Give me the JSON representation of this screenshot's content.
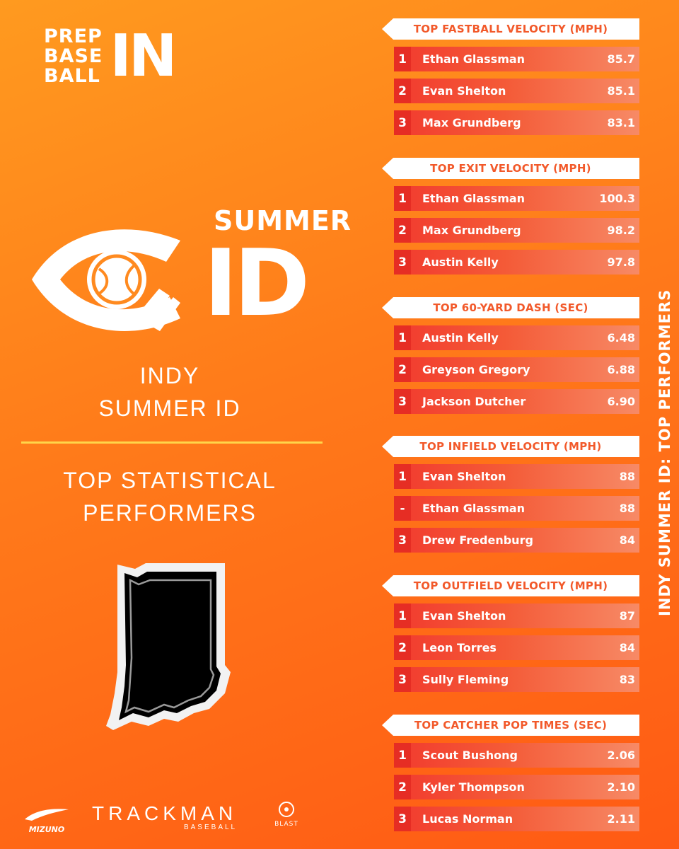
{
  "brand": {
    "logo_words": [
      "PREP",
      "BASE",
      "BALL"
    ],
    "logo_state": "IN"
  },
  "event": {
    "logo_summer": "SUMMER",
    "logo_id": "ID",
    "title_line1": "INDY",
    "title_line2": "SUMMER ID",
    "subtitle_line1": "TOP STATISTICAL",
    "subtitle_line2": "PERFORMERS"
  },
  "vertical_title": "INDY SUMMER ID: TOP PERFORMERS",
  "sponsors": {
    "mizuno": "MIZUNO",
    "trackman": "TRACKMAN",
    "trackman_sub": "BASEBALL",
    "blast": "BLAST"
  },
  "colors": {
    "accent_red": "#e62d24",
    "header_text": "#f2592a",
    "divider": "#ffd54a",
    "bg_orange": "#ff7a1a"
  },
  "categories": [
    {
      "title": "TOP FASTBALL VELOCITY (MPH)",
      "rows": [
        {
          "rank": "1",
          "name": "Ethan Glassman",
          "value": "85.7"
        },
        {
          "rank": "2",
          "name": "Evan Shelton",
          "value": "85.1"
        },
        {
          "rank": "3",
          "name": "Max Grundberg",
          "value": "83.1"
        }
      ]
    },
    {
      "title": "TOP EXIT VELOCITY (MPH)",
      "rows": [
        {
          "rank": "1",
          "name": "Ethan Glassman",
          "value": "100.3"
        },
        {
          "rank": "2",
          "name": "Max Grundberg",
          "value": "98.2"
        },
        {
          "rank": "3",
          "name": "Austin Kelly",
          "value": "97.8"
        }
      ]
    },
    {
      "title": "TOP 60-YARD DASH (SEC)",
      "rows": [
        {
          "rank": "1",
          "name": "Austin Kelly",
          "value": "6.48"
        },
        {
          "rank": "2",
          "name": "Greyson Gregory",
          "value": "6.88"
        },
        {
          "rank": "3",
          "name": "Jackson Dutcher",
          "value": "6.90"
        }
      ]
    },
    {
      "title": "TOP INFIELD VELOCITY (MPH)",
      "rows": [
        {
          "rank": "1",
          "name": "Evan Shelton",
          "value": "88"
        },
        {
          "rank": "-",
          "name": "Ethan Glassman",
          "value": "88"
        },
        {
          "rank": "3",
          "name": "Drew Fredenburg",
          "value": "84"
        }
      ]
    },
    {
      "title": "TOP OUTFIELD VELOCITY (MPH)",
      "rows": [
        {
          "rank": "1",
          "name": "Evan Shelton",
          "value": "87"
        },
        {
          "rank": "2",
          "name": "Leon Torres",
          "value": "84"
        },
        {
          "rank": "3",
          "name": "Sully Fleming",
          "value": "83"
        }
      ]
    },
    {
      "title": "TOP CATCHER POP TIMES (SEC)",
      "rows": [
        {
          "rank": "1",
          "name": "Scout Bushong",
          "value": "2.06"
        },
        {
          "rank": "2",
          "name": "Kyler Thompson",
          "value": "2.10"
        },
        {
          "rank": "3",
          "name": "Lucas Norman",
          "value": "2.11"
        }
      ]
    }
  ]
}
